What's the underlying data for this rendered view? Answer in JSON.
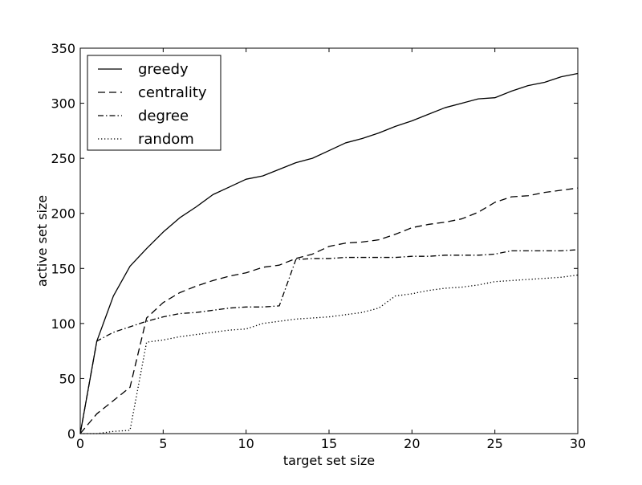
{
  "chart_data": {
    "type": "line",
    "xlabel": "target set size",
    "ylabel": "active set size",
    "xlim": [
      0,
      30
    ],
    "ylim": [
      0,
      350
    ],
    "xticks": [
      0,
      5,
      10,
      15,
      20,
      25,
      30
    ],
    "yticks": [
      0,
      50,
      100,
      150,
      200,
      250,
      300,
      350
    ],
    "grid": false,
    "legend_position": "top-left",
    "x": [
      0,
      1,
      2,
      3,
      4,
      5,
      6,
      7,
      8,
      9,
      10,
      11,
      12,
      13,
      14,
      15,
      16,
      17,
      18,
      19,
      20,
      21,
      22,
      23,
      24,
      25,
      26,
      27,
      28,
      29,
      30
    ],
    "series": [
      {
        "name": "greedy",
        "style": "solid",
        "values": [
          0,
          84,
          125,
          152,
          168,
          183,
          196,
          206,
          217,
          224,
          231,
          234,
          240,
          246,
          250,
          257,
          264,
          268,
          273,
          279,
          284,
          290,
          296,
          300,
          304,
          305,
          311,
          316,
          319,
          324,
          327
        ]
      },
      {
        "name": "centrality",
        "style": "dashed",
        "values": [
          0,
          18,
          30,
          42,
          105,
          119,
          128,
          134,
          139,
          143,
          146,
          151,
          153,
          159,
          163,
          170,
          173,
          174,
          176,
          181,
          187,
          190,
          192,
          195,
          201,
          210,
          215,
          216,
          219,
          221,
          223
        ]
      },
      {
        "name": "degree",
        "style": "dashdot",
        "values": [
          0,
          84,
          92,
          97,
          102,
          106,
          109,
          110,
          112,
          114,
          115,
          115,
          116,
          158,
          159,
          159,
          160,
          160,
          160,
          160,
          161,
          161,
          162,
          162,
          162,
          163,
          166,
          166,
          166,
          166,
          167
        ]
      },
      {
        "name": "random",
        "style": "dotted",
        "values": [
          0,
          0,
          2,
          3,
          83,
          85,
          88,
          90,
          92,
          94,
          95,
          100,
          102,
          104,
          105,
          106,
          108,
          110,
          114,
          125,
          127,
          130,
          132,
          133,
          135,
          138,
          139,
          140,
          141,
          142,
          144
        ]
      }
    ]
  }
}
